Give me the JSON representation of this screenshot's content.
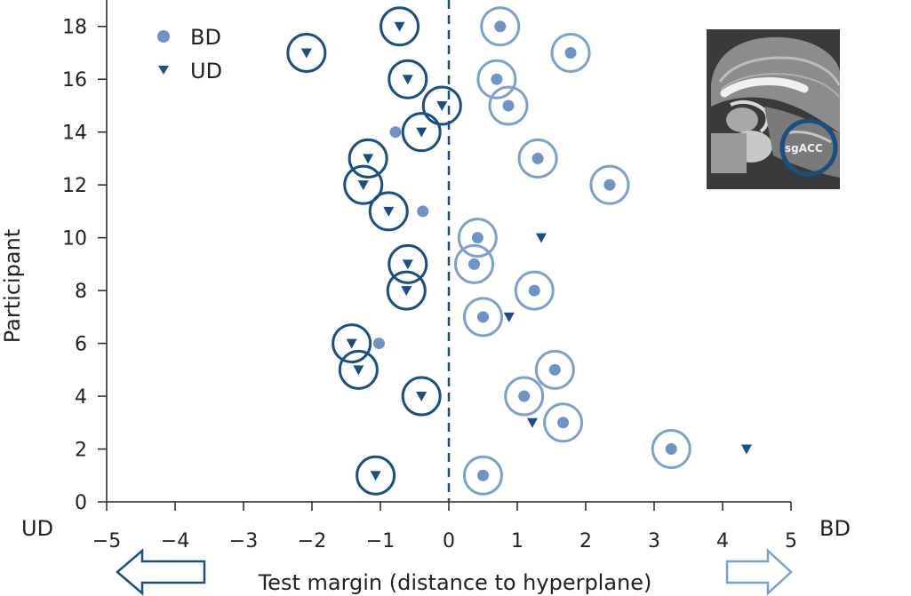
{
  "chart_data": {
    "type": "scatter",
    "xlabel": "Test margin (distance to hyperplane)",
    "ylabel": "Participant",
    "xlim": [
      -5,
      5
    ],
    "ylim": [
      0,
      19
    ],
    "x_ticks": [
      "−5",
      "−4",
      "−3",
      "−2",
      "−1",
      "0",
      "1",
      "2",
      "3",
      "4",
      "5"
    ],
    "y_ticks": [
      "0",
      "2",
      "4",
      "6",
      "8",
      "10",
      "12",
      "14",
      "16",
      "18"
    ],
    "left_end_label": "UD",
    "right_end_label": "BD",
    "hyperplane_x": 0,
    "legend_position": "top-left",
    "inset_image_label": "sgACC",
    "series": [
      {
        "name": "BD",
        "marker": "circle",
        "color": "#6f93c6",
        "points": [
          {
            "x": 0.75,
            "y": 18,
            "correct": true
          },
          {
            "x": 1.78,
            "y": 17,
            "correct": true
          },
          {
            "x": 0.7,
            "y": 16,
            "correct": true
          },
          {
            "x": 0.87,
            "y": 15,
            "correct": true
          },
          {
            "x": -0.78,
            "y": 14,
            "correct": false
          },
          {
            "x": 1.3,
            "y": 13,
            "correct": true
          },
          {
            "x": 2.35,
            "y": 12,
            "correct": true
          },
          {
            "x": -0.38,
            "y": 11,
            "correct": false
          },
          {
            "x": 0.42,
            "y": 10,
            "correct": true
          },
          {
            "x": 0.37,
            "y": 9,
            "correct": true
          },
          {
            "x": 1.25,
            "y": 8,
            "correct": true
          },
          {
            "x": 0.5,
            "y": 7,
            "correct": true
          },
          {
            "x": -1.02,
            "y": 6,
            "correct": false
          },
          {
            "x": 1.55,
            "y": 5,
            "correct": true
          },
          {
            "x": 1.1,
            "y": 4,
            "correct": true
          },
          {
            "x": 1.67,
            "y": 3,
            "correct": true
          },
          {
            "x": 3.25,
            "y": 2,
            "correct": true
          },
          {
            "x": 0.5,
            "y": 1,
            "correct": true
          }
        ]
      },
      {
        "name": "UD",
        "marker": "triangle-down",
        "color": "#1b4f82",
        "points": [
          {
            "x": -0.72,
            "y": 18,
            "correct": true
          },
          {
            "x": -2.08,
            "y": 17,
            "correct": true
          },
          {
            "x": -0.6,
            "y": 16,
            "correct": true
          },
          {
            "x": -0.1,
            "y": 15,
            "correct": true
          },
          {
            "x": -0.4,
            "y": 14,
            "correct": true
          },
          {
            "x": -1.18,
            "y": 13,
            "correct": true
          },
          {
            "x": -1.25,
            "y": 12,
            "correct": true
          },
          {
            "x": -0.88,
            "y": 11,
            "correct": true
          },
          {
            "x": 1.35,
            "y": 10,
            "correct": false
          },
          {
            "x": -0.6,
            "y": 9,
            "correct": true
          },
          {
            "x": -0.62,
            "y": 8,
            "correct": true
          },
          {
            "x": 0.88,
            "y": 7,
            "correct": false
          },
          {
            "x": -1.42,
            "y": 6,
            "correct": true
          },
          {
            "x": -1.32,
            "y": 5,
            "correct": true
          },
          {
            "x": -0.4,
            "y": 4,
            "correct": true
          },
          {
            "x": 1.22,
            "y": 3,
            "correct": false
          },
          {
            "x": 4.35,
            "y": 2,
            "correct": false
          },
          {
            "x": -1.07,
            "y": 1,
            "correct": true
          }
        ]
      }
    ]
  },
  "colors": {
    "bd_fill": "#6f93c6",
    "bd_ring": "#7f9fcf",
    "ud_fill": "#1b4f82",
    "ud_ring": "#1b4f82",
    "axis": "#222222"
  }
}
